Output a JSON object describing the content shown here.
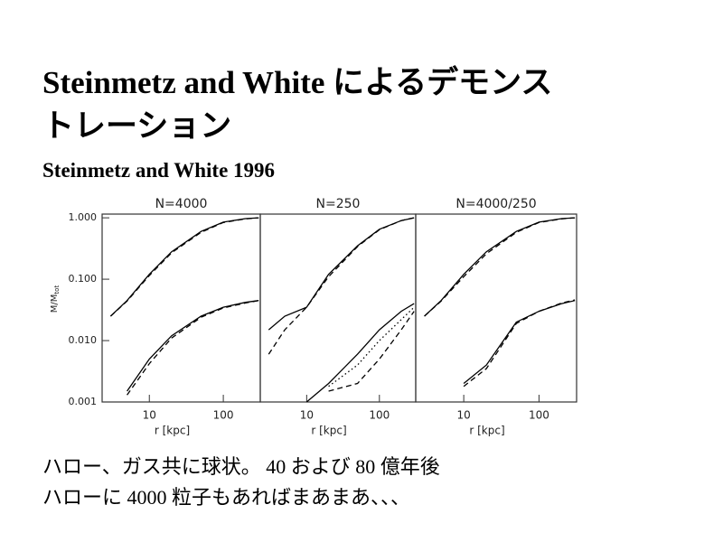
{
  "title_lines": [
    "Steinmetz and White によるデモンス",
    "トレーション"
  ],
  "subtitle": "Steinmetz and White 1996",
  "body_lines": [
    "ハロー、ガス共に球状。 40 および 80 億年後",
    "ハローに 4000 粒子もあればまあまあ、、、"
  ],
  "chart_data": [
    {
      "type": "line",
      "title": "N=4000",
      "xlabel": "r [kpc]",
      "ylabel": {
        "main": "M/M",
        "sub": "tot"
      },
      "log_x": true,
      "log_y": true,
      "xlim": [
        2.3,
        316
      ],
      "ylim": [
        0.001,
        1.15
      ],
      "xticks": [
        10,
        100
      ],
      "yticks": [
        {
          "value": 1,
          "label": "1.000"
        },
        {
          "value": 0.1,
          "label": "0.100"
        },
        {
          "value": 0.01,
          "label": "0.010"
        },
        {
          "value": 0.001,
          "label": "0.001"
        }
      ],
      "x": [
        3,
        5,
        10,
        20,
        50,
        100,
        200,
        300
      ],
      "series": [
        {
          "color": "#000",
          "dash": "solid",
          "values": [
            0.025,
            0.045,
            0.12,
            0.28,
            0.6,
            0.85,
            0.97,
            1.0
          ]
        },
        {
          "color": "#000",
          "dash": "dashed",
          "values": [
            0.025,
            0.044,
            0.115,
            0.27,
            0.58,
            0.84,
            0.96,
            1.0
          ]
        },
        {
          "color": "#000",
          "dash": "solid",
          "values": [
            null,
            0.0015,
            0.005,
            0.012,
            0.025,
            0.035,
            0.042,
            0.045
          ]
        },
        {
          "color": "#000",
          "dash": "dashed",
          "values": [
            null,
            0.0013,
            0.0042,
            0.011,
            0.024,
            0.034,
            0.041,
            0.045
          ]
        }
      ]
    },
    {
      "type": "line",
      "title": "N=250",
      "xlabel": "r [kpc]",
      "log_x": true,
      "log_y": true,
      "xlim": [
        2.3,
        316
      ],
      "ylim": [
        0.001,
        1.15
      ],
      "xticks": [
        10,
        100
      ],
      "x": [
        3,
        5,
        10,
        20,
        50,
        100,
        200,
        300
      ],
      "series": [
        {
          "color": "#000",
          "dash": "solid",
          "values": [
            0.015,
            0.025,
            0.035,
            0.12,
            0.35,
            0.65,
            0.9,
            1.0
          ]
        },
        {
          "color": "#000",
          "dash": "dashed",
          "values": [
            0.006,
            0.015,
            0.035,
            0.11,
            0.34,
            0.64,
            0.9,
            1.0
          ]
        },
        {
          "color": "#000",
          "dash": "solid",
          "values": [
            null,
            null,
            0.001,
            0.002,
            0.006,
            0.015,
            0.03,
            0.04
          ]
        },
        {
          "color": "#000",
          "dash": "dashed",
          "values": [
            null,
            null,
            null,
            0.0015,
            0.002,
            0.005,
            0.015,
            0.03
          ]
        },
        {
          "color": "#000",
          "dash": "dotted",
          "values": [
            null,
            null,
            null,
            0.0018,
            0.004,
            0.01,
            0.022,
            0.035
          ]
        }
      ]
    },
    {
      "type": "line",
      "title": "N=4000/250",
      "xlabel": "r [kpc]",
      "log_x": true,
      "log_y": true,
      "xlim": [
        2.3,
        316
      ],
      "ylim": [
        0.001,
        1.15
      ],
      "xticks": [
        10,
        100
      ],
      "x": [
        3,
        5,
        10,
        20,
        50,
        100,
        200,
        300
      ],
      "series": [
        {
          "color": "#000",
          "dash": "solid",
          "values": [
            0.025,
            0.045,
            0.12,
            0.28,
            0.6,
            0.85,
            0.97,
            1.0
          ]
        },
        {
          "color": "#000",
          "dash": "dashed",
          "values": [
            0.025,
            0.044,
            0.11,
            0.26,
            0.58,
            0.84,
            0.96,
            1.0
          ]
        },
        {
          "color": "#000",
          "dash": "solid",
          "values": [
            null,
            null,
            0.002,
            0.004,
            0.02,
            0.03,
            0.04,
            0.045
          ]
        },
        {
          "color": "#000",
          "dash": "dashed",
          "values": [
            null,
            null,
            0.0018,
            0.0035,
            0.019,
            0.03,
            0.041,
            0.046
          ]
        }
      ]
    }
  ]
}
